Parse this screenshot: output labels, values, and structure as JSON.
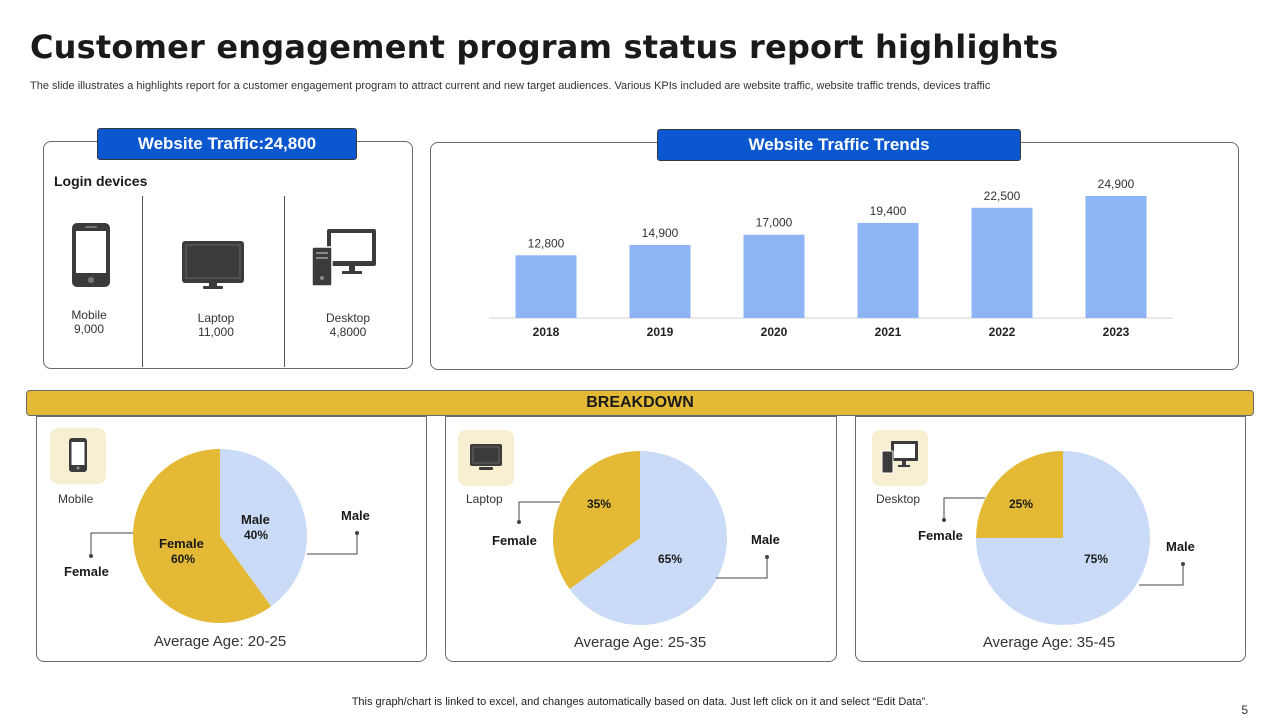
{
  "title": "Customer engagement program status report highlights",
  "subtitle": "The slide illustrates a highlights report for a customer engagement program to attract current and new target audiences. Various KPIs included are website traffic, website traffic trends, devices traffic",
  "traffic_panel": {
    "tab_label": "Website Traffic:24,800",
    "heading": "Login devices",
    "devices": [
      {
        "name": "Mobile",
        "value": "9,000",
        "icon": "mobile-phone-icon"
      },
      {
        "name": "Laptop",
        "value": "11,000",
        "icon": "laptop-icon"
      },
      {
        "name": "Desktop",
        "value": "4,8000",
        "icon": "desktop-icon"
      }
    ]
  },
  "trends_panel": {
    "tab_label": "Website Traffic Trends"
  },
  "breakdown_label": "BREAKDOWN",
  "breakdown": [
    {
      "device": "Mobile",
      "avg_age": "Average Age: 20-25",
      "female_label": "Female",
      "male_label": "Male",
      "female_pct": "60%",
      "male_pct": "40%"
    },
    {
      "device": "Laptop",
      "avg_age": "Average Age: 25-35",
      "female_label": "Female",
      "male_label": "Male",
      "female_pct": "35%",
      "male_pct": "65%"
    },
    {
      "device": "Desktop",
      "avg_age": "Average Age: 35-45",
      "female_label": "Female",
      "male_label": "Male",
      "female_pct": "25%",
      "male_pct": "75%"
    }
  ],
  "footer": "This graph/chart is linked to excel, and changes automatically based on data. Just left click on it and select “Edit Data”.",
  "page_number": "5",
  "colors": {
    "bar": "#8fb4f5",
    "female": "#e3b935",
    "male": "#c9dbf7",
    "tab": "#0b57d0",
    "breakdown": "#e3b935"
  },
  "chart_data": [
    {
      "type": "bar",
      "title": "Website Traffic Trends",
      "categories": [
        "2018",
        "2019",
        "2020",
        "2021",
        "2022",
        "2023"
      ],
      "values": [
        12800,
        14900,
        17000,
        19400,
        22500,
        24900
      ],
      "value_labels": [
        "12,800",
        "14,900",
        "17,000",
        "19,400",
        "22,500",
        "24,900"
      ],
      "grid": false,
      "legend": "none"
    },
    {
      "type": "pie",
      "title": "Mobile",
      "categories": [
        "Male",
        "Female"
      ],
      "values": [
        40,
        60
      ]
    },
    {
      "type": "pie",
      "title": "Laptop",
      "categories": [
        "Female",
        "Male"
      ],
      "values": [
        35,
        65
      ]
    },
    {
      "type": "pie",
      "title": "Desktop",
      "categories": [
        "Female",
        "Male"
      ],
      "values": [
        25,
        75
      ]
    }
  ]
}
